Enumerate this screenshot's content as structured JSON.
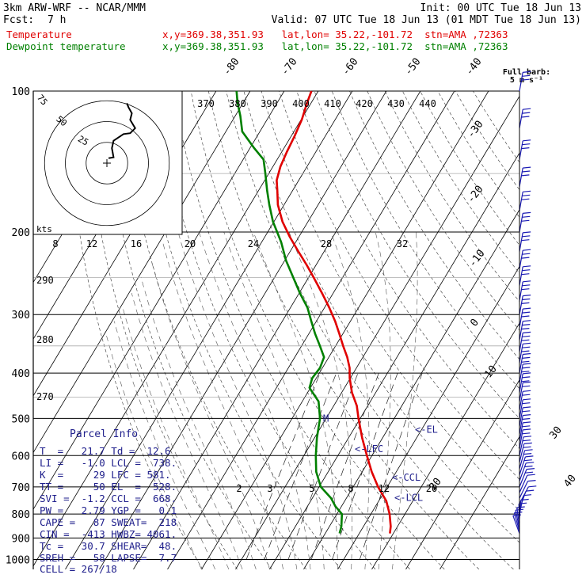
{
  "header": {
    "model": "3km ARW-WRF -- NCAR/MMM",
    "init": "Init: 00 UTC Tue 18 Jun 13",
    "fcst_label": "Fcst:",
    "fcst_value": "7 h",
    "valid": "Valid: 07 UTC Tue 18 Jun 13 (01 MDT Tue 18 Jun 13)",
    "lines": [
      {
        "label": "Temperature",
        "info": "x,y=369.38,351.93   lat,lon= 35.22,-101.72  stn=AMA ,72363",
        "color": "#e00000"
      },
      {
        "label": "Dewpoint temperature",
        "info": "x,y=369.38,351.93   lat,lon= 35.22,-101.72  stn=AMA ,72363",
        "color": "#008000"
      }
    ]
  },
  "parcel": {
    "title": "Parcel Info",
    "rows": [
      "T  =   21.7 Td =  12.6",
      "LI =   -1.0 LCL =  738.",
      "K  =     29 LFC = 581.",
      "TT =     50 EL  =  528.",
      "SVI =  -1.2 CCL =  668.",
      "PW =   2.79 YGP =   0.1",
      "CAPE =   87 SWEAT=  218",
      "CIN =  -413 HWBZ= 4061.",
      "Tc =   30.7 SHEAR=  48.",
      "SREH =   58 LAPSE=  7.7",
      "CELL = 267/18"
    ]
  },
  "barb_key": {
    "line1": "Full barb:",
    "line2": "5 m s⁻¹"
  },
  "hodograph": {
    "units": "kts",
    "ring_labels": [
      "75",
      "50",
      "25"
    ]
  },
  "levels": [
    {
      "label": "LCL",
      "p": 738,
      "text": "<-LCL"
    },
    {
      "label": "CCL",
      "p": 668,
      "text": "<-CCL"
    },
    {
      "label": "LFC",
      "p": 581,
      "text": "<-LFC"
    },
    {
      "label": "EL",
      "p": 528,
      "text": "<-EL"
    }
  ],
  "colors": {
    "temperature": "#e00000",
    "dewpoint": "#008000",
    "grid": "#000000",
    "annot": "#20208c",
    "barb": "#1c1cb4"
  },
  "chart_data": {
    "type": "line",
    "diagram": "skew-T log-p",
    "y_axis_pressure_hPa": [
      100,
      200,
      300,
      400,
      500,
      600,
      700,
      800,
      900,
      1000
    ],
    "isotherm_labels_C": [
      40,
      30,
      20,
      10,
      0,
      -10,
      -20,
      -30,
      -40,
      -50,
      -60,
      -70,
      -80
    ],
    "theta_labels_K": [
      370,
      380,
      390,
      400,
      410,
      420,
      430,
      440
    ],
    "dry_adiabat_labels_K": [
      290,
      280,
      270
    ],
    "mixing_ratio_labels": [
      "2",
      "3",
      "5",
      "8",
      "12",
      "20"
    ],
    "theta_e_labels_C": [
      8,
      12,
      16,
      20,
      24,
      28,
      32
    ],
    "series": [
      {
        "name": "Temperature",
        "color": "#e00000",
        "points": [
          [
            880,
            29.0
          ],
          [
            850,
            28.0
          ],
          [
            800,
            25.5
          ],
          [
            750,
            22.2
          ],
          [
            700,
            17.3
          ],
          [
            650,
            12.8
          ],
          [
            600,
            8.5
          ],
          [
            550,
            4.0
          ],
          [
            500,
            -0.5
          ],
          [
            470,
            -3.2
          ],
          [
            440,
            -7.0
          ],
          [
            410,
            -10.2
          ],
          [
            390,
            -12.0
          ],
          [
            370,
            -14.6
          ],
          [
            350,
            -17.8
          ],
          [
            330,
            -21.0
          ],
          [
            310,
            -24.5
          ],
          [
            290,
            -28.6
          ],
          [
            270,
            -33.3
          ],
          [
            250,
            -38.5
          ],
          [
            235,
            -42.8
          ],
          [
            220,
            -47.6
          ],
          [
            205,
            -52.6
          ],
          [
            190,
            -57.5
          ],
          [
            175,
            -61.8
          ],
          [
            163,
            -64.5
          ],
          [
            155,
            -66.5
          ],
          [
            145,
            -67.8
          ],
          [
            135,
            -68.5
          ],
          [
            125,
            -69.0
          ],
          [
            115,
            -69.8
          ],
          [
            106,
            -71.2
          ],
          [
            100,
            -72.0
          ]
        ]
      },
      {
        "name": "Dewpoint temperature",
        "color": "#008000",
        "points": [
          [
            880,
            14.2
          ],
          [
            850,
            13.5
          ],
          [
            800,
            11.5
          ],
          [
            770,
            8.2
          ],
          [
            740,
            5.5
          ],
          [
            700,
            0.5
          ],
          [
            650,
            -3.5
          ],
          [
            600,
            -6.5
          ],
          [
            550,
            -9.3
          ],
          [
            500,
            -11.8
          ],
          [
            460,
            -15.2
          ],
          [
            430,
            -20.3
          ],
          [
            410,
            -21.2
          ],
          [
            390,
            -20.7
          ],
          [
            370,
            -21.4
          ],
          [
            350,
            -24.6
          ],
          [
            330,
            -28.1
          ],
          [
            310,
            -31.5
          ],
          [
            290,
            -35.0
          ],
          [
            270,
            -39.8
          ],
          [
            250,
            -44.5
          ],
          [
            230,
            -49.6
          ],
          [
            210,
            -54.3
          ],
          [
            190,
            -60.3
          ],
          [
            175,
            -64.3
          ],
          [
            163,
            -67.5
          ],
          [
            150,
            -71.0
          ],
          [
            140,
            -74.0
          ],
          [
            132,
            -79.0
          ],
          [
            122,
            -85.2
          ],
          [
            113,
            -88.5
          ],
          [
            106,
            -91.6
          ],
          [
            100,
            -94.0
          ]
        ]
      }
    ],
    "hodograph_points_kts": [
      [
        -2,
        -6
      ],
      [
        -8,
        -7
      ],
      [
        -6,
        -18
      ],
      [
        -8,
        -27
      ],
      [
        -20,
        -35
      ],
      [
        -28,
        -36
      ],
      [
        -34,
        -42
      ],
      [
        -28,
        -52
      ],
      [
        -30,
        -60
      ],
      [
        -26,
        -67
      ],
      [
        -24,
        -72
      ]
    ],
    "wind_barb_pressures": [
      880,
      870,
      860,
      850,
      835,
      820,
      800,
      780,
      760,
      740,
      720,
      700,
      680,
      660,
      640,
      620,
      600,
      580,
      560,
      540,
      520,
      500,
      480,
      460,
      440,
      420,
      400,
      380,
      360,
      340,
      320,
      300,
      280,
      260,
      240,
      220,
      200,
      180,
      160,
      140,
      120,
      100
    ]
  }
}
